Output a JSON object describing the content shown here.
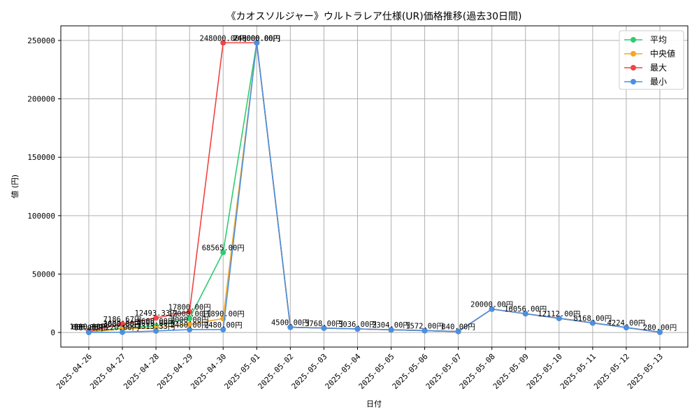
{
  "chart_data": {
    "type": "line",
    "title": "《カオスソルジャー》ウルトラレア仕様(UR)価格推移(過去30日間)",
    "xlabel": "日付",
    "ylabel": "値 (円)",
    "ylim": [
      -12500,
      262500
    ],
    "yticks": [
      0,
      50000,
      100000,
      150000,
      200000,
      250000
    ],
    "categories": [
      "2025-04-26",
      "2025-04-27",
      "2025-04-28",
      "2025-04-29",
      "2025-04-30",
      "2025-05-01",
      "2025-05-02",
      "2025-05-03",
      "2025-05-04",
      "2025-05-05",
      "2025-05-06",
      "2025-05-07",
      "2025-05-08",
      "2025-05-09",
      "2025-05-10",
      "2025-05-11",
      "2025-05-12",
      "2025-05-13"
    ],
    "legend_position": "top-right",
    "grid": true,
    "series": [
      {
        "name": "平均",
        "color": "#2ecc71",
        "values": [
          1000,
          3600,
          5600,
          12000,
          68565,
          248000,
          4500,
          3768,
          3036,
          2304,
          1572,
          840,
          20000,
          16056,
          12112,
          8168,
          4224,
          280
        ],
        "labels": [
          "1000.00円",
          "3600.00円",
          "5600.00円",
          "12000.00円",
          "68565.00円",
          "248000.00円",
          "",
          "",
          "",
          "",
          "",
          "",
          "",
          "",
          "",
          "",
          "",
          ""
        ]
      },
      {
        "name": "中央値",
        "color": "#f5a623",
        "values": [
          600,
          3000,
          4000,
          7000,
          11890,
          248000,
          4500,
          3768,
          3036,
          2304,
          1572,
          840,
          20000,
          16056,
          12112,
          8168,
          4224,
          280
        ],
        "labels": [
          "600.00円",
          "3000.00円",
          "4000.00円",
          "7000.00円",
          "11890.00円",
          "248000.00円",
          "",
          "",
          "",
          "",
          "",
          "",
          "",
          "",
          "",
          "",
          "",
          ""
        ]
      },
      {
        "name": "最大",
        "color": "#ef4444",
        "values": [
          1000,
          7187,
          12493,
          17800,
          248000,
          248000,
          4500,
          3768,
          3036,
          2304,
          1572,
          840,
          20000,
          16056,
          12112,
          8168,
          4224,
          280
        ],
        "labels": [
          "1000.00円",
          "7186.67円",
          "12493.33円",
          "17800.00円",
          "248000.00円",
          "248000.00円",
          "",
          "",
          "",
          "",
          "",
          "",
          "",
          "",
          "",
          "",
          "",
          ""
        ]
      },
      {
        "name": "最小",
        "color": "#4a90e2",
        "values": [
          88,
          220,
          1313,
          2480,
          2480,
          248000,
          4500,
          3768,
          3036,
          2304,
          1572,
          840,
          20000,
          16056,
          12112,
          8168,
          4224,
          280
        ],
        "labels": [
          "88.00円",
          "220.00円",
          "1313.33円",
          "2480.00円",
          "2480.00円",
          "248000.00円",
          "4500.00円",
          "3768.00円",
          "3036.00円",
          "2304.00円",
          "1572.00円",
          "840.00円",
          "20000.00円",
          "16056.00円",
          "12112.00円",
          "8168.00円",
          "4224.00円",
          "280.00円"
        ]
      }
    ]
  }
}
